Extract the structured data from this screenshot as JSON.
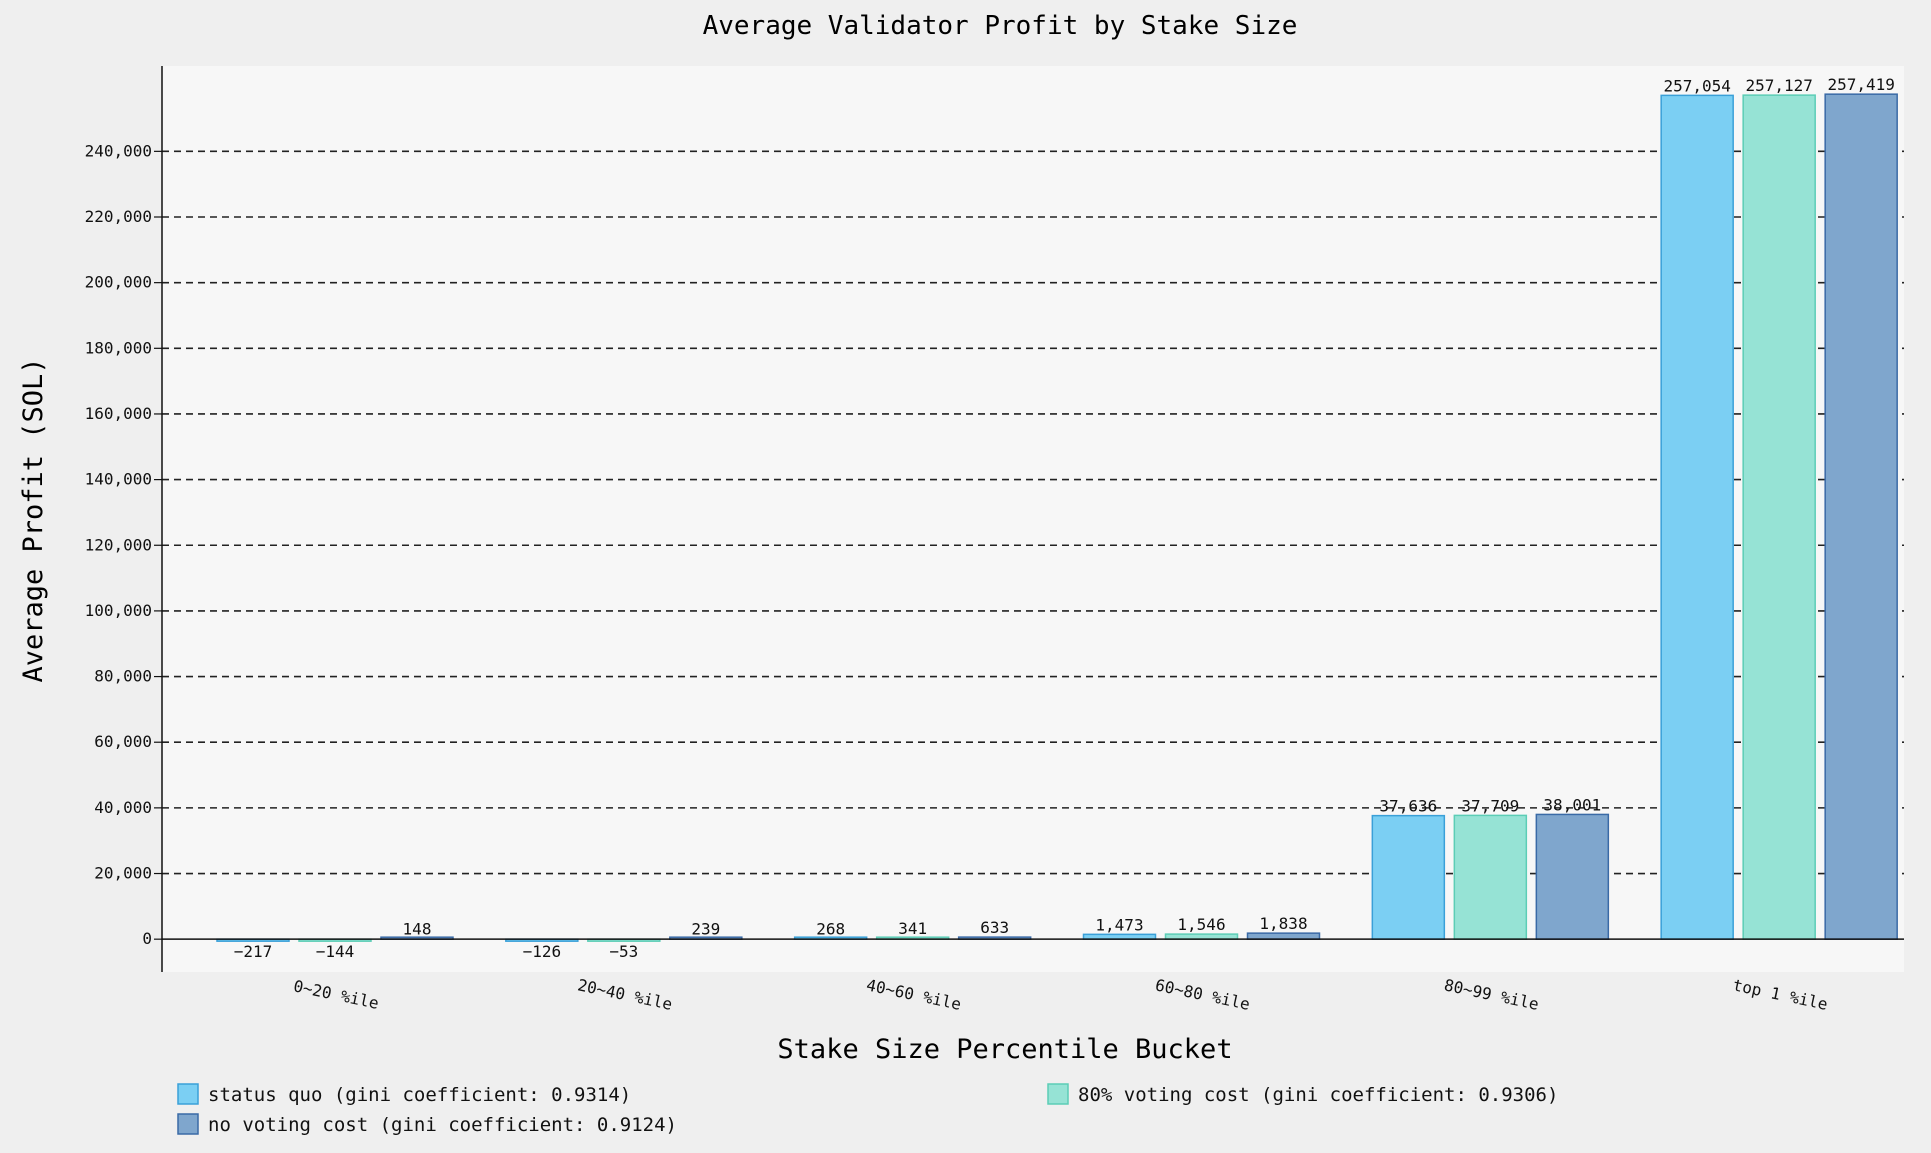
{
  "chart_data": {
    "type": "bar",
    "title": "Average Validator Profit by Stake Size",
    "xlabel": "Stake Size Percentile Bucket",
    "ylabel": "Average Profit (SOL)",
    "categories": [
      "0~20 %ile",
      "20~40 %ile",
      "40~60 %ile",
      "60~80 %ile",
      "80~99 %ile",
      "top 1 %ile"
    ],
    "ylim": [
      -10000,
      266000
    ],
    "yticks": [
      0,
      20000,
      40000,
      60000,
      80000,
      100000,
      120000,
      140000,
      160000,
      180000,
      200000,
      220000,
      240000
    ],
    "ytick_labels": [
      "0",
      "20,000",
      "40,000",
      "60,000",
      "80,000",
      "100,000",
      "120,000",
      "140,000",
      "160,000",
      "180,000",
      "200,000",
      "220,000",
      "240,000"
    ],
    "grid": "horizontal dashed",
    "legend_placement": "bottom",
    "series": [
      {
        "name": "status quo (gini coefficient: 0.9314)",
        "color": "#7bcff3",
        "edge": "#3aa0d8",
        "values": [
          -217,
          -126,
          268,
          1473,
          37636,
          257054
        ],
        "labels": [
          "−217",
          "−126",
          "268",
          "1,473",
          "37,636",
          "257,054"
        ]
      },
      {
        "name": "80% voting cost (gini coefficient: 0.9306)",
        "color": "#96e3d5",
        "edge": "#5ccdb6",
        "values": [
          -144,
          -53,
          341,
          1546,
          37709,
          257127
        ],
        "labels": [
          "−144",
          "−53",
          "341",
          "1,546",
          "37,709",
          "257,127"
        ]
      },
      {
        "name": "no voting cost (gini coefficient: 0.9124)",
        "color": "#7fa6cd",
        "edge": "#3a6aa6",
        "values": [
          148,
          239,
          633,
          1838,
          38001,
          257419
        ],
        "labels": [
          "148",
          "239",
          "633",
          "1,838",
          "38,001",
          "257,419"
        ]
      }
    ]
  }
}
